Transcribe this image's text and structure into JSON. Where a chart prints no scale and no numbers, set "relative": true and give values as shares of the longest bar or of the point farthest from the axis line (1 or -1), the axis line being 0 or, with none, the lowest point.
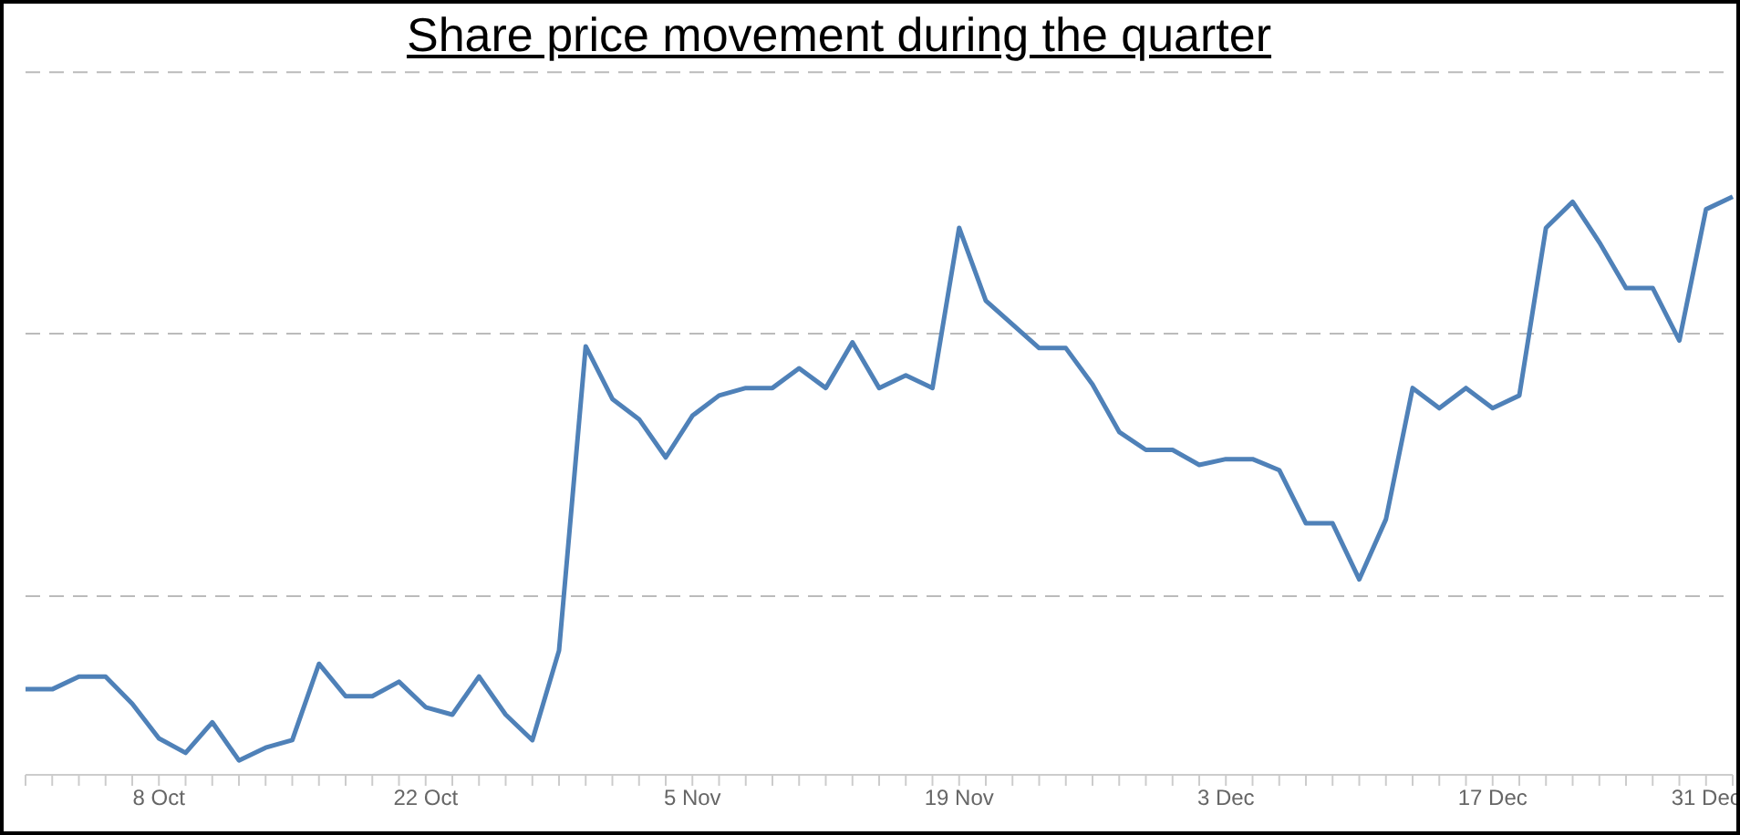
{
  "chart_data": {
    "type": "line",
    "title": "Share price movement during the quarter",
    "relative": true,
    "legend": false,
    "ref_lines": [
      {
        "axis": "y",
        "value": 1.215,
        "color": "#bbbbbb",
        "line_style": "dashed"
      },
      {
        "axis": "y",
        "value": 0.763,
        "color": "#bbbbbb",
        "line_style": "dashed"
      },
      {
        "axis": "y",
        "value": 0.309,
        "color": "#bbbbbb",
        "line_style": "dashed"
      }
    ],
    "marker": "none",
    "line_style": "solid",
    "categories": [
      null,
      null,
      null,
      null,
      null,
      "8 Oct",
      null,
      null,
      null,
      null,
      null,
      null,
      null,
      null,
      null,
      "22 Oct",
      null,
      null,
      null,
      null,
      null,
      null,
      null,
      null,
      null,
      "5 Nov",
      null,
      null,
      null,
      null,
      null,
      null,
      null,
      null,
      null,
      "19 Nov",
      null,
      null,
      null,
      null,
      null,
      null,
      null,
      null,
      null,
      "3 Dec",
      null,
      null,
      null,
      null,
      null,
      null,
      null,
      null,
      null,
      "17 Dec",
      null,
      null,
      null,
      null,
      null,
      null,
      null,
      "31 Dec",
      null
    ],
    "series": [
      {
        "color": "#4f81b8",
        "values": [
          0.148,
          0.148,
          0.17,
          0.17,
          0.123,
          0.063,
          0.038,
          0.091,
          0.025,
          0.047,
          0.06,
          0.192,
          0.136,
          0.136,
          0.161,
          0.117,
          0.104,
          0.17,
          0.104,
          0.06,
          0.215,
          0.741,
          0.65,
          0.615,
          0.549,
          0.621,
          0.656,
          0.669,
          0.669,
          0.703,
          0.669,
          0.748,
          0.669,
          0.691,
          0.669,
          0.946,
          0.82,
          0.779,
          0.738,
          0.738,
          0.675,
          0.593,
          0.562,
          0.562,
          0.536,
          0.546,
          0.546,
          0.527,
          0.435,
          0.435,
          0.338,
          0.442,
          0.669,
          0.634,
          0.669,
          0.634,
          0.656,
          0.946,
          0.991,
          0.921,
          0.842,
          0.842,
          0.751,
          0.978,
          1
        ]
      }
    ]
  }
}
